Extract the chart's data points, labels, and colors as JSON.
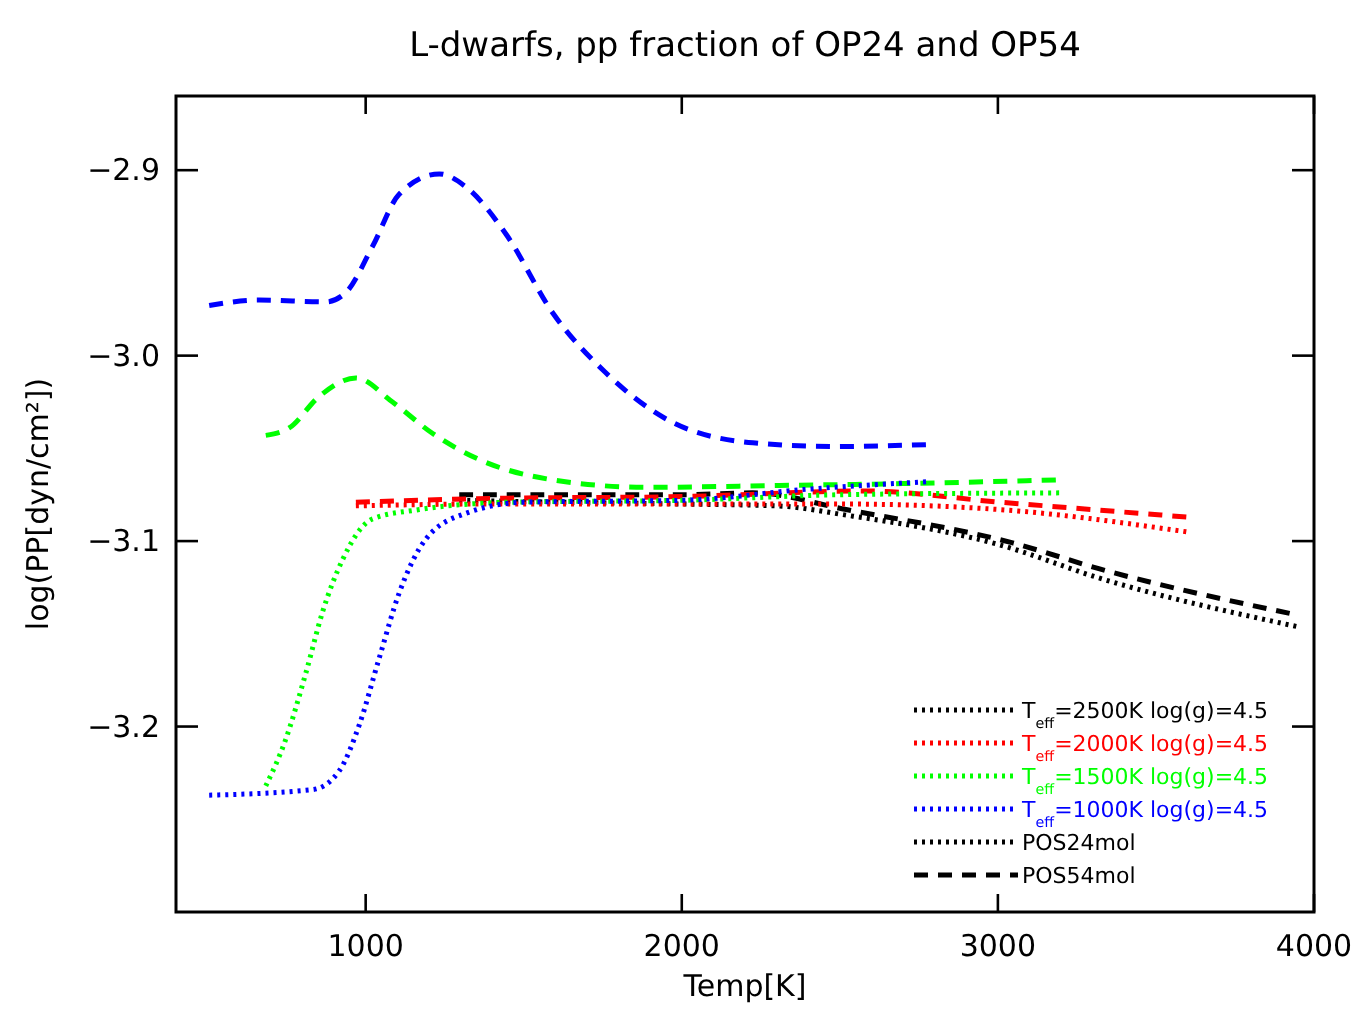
{
  "chart_data": {
    "type": "line",
    "title": "L-dwarfs, pp fraction of OP24 and OP54",
    "xlabel": "Temp[K]",
    "ylabel": "log(PP[dyn/cm²])",
    "xlim": [
      400,
      4000
    ],
    "xticks": [
      1000,
      2000,
      3000,
      4000
    ],
    "ylim": [
      -3.3,
      -2.86
    ],
    "yticks": [
      {
        "value": -2.9,
        "label": "−2.9"
      },
      {
        "value": -3.0,
        "label": "−3.0"
      },
      {
        "value": -3.1,
        "label": "−3.1"
      },
      {
        "value": -3.2,
        "label": "−3.2"
      }
    ],
    "grid": false,
    "legend": "bottom right",
    "annotations": [
      "POS24mol",
      "POS54mol"
    ],
    "series": [
      {
        "name": "T$_{eff}$=2500K  log(g)=4.5",
        "color": "#000000",
        "line_style": "dotted",
        "x": [
          1296,
          1600,
          2000,
          2300,
          2520,
          3005,
          3322,
          3944
        ],
        "values": [
          -3.078,
          -3.079,
          -3.08,
          -3.081,
          -3.086,
          -3.102,
          -3.12,
          -3.146
        ]
      },
      {
        "color": "#000000",
        "line_style": "dashed",
        "x": [
          1296,
          1600,
          2000,
          2225,
          2520,
          3047,
          3322,
          3923
        ],
        "values": [
          -3.075,
          -3.075,
          -3.075,
          -3.074,
          -3.083,
          -3.101,
          -3.115,
          -3.139
        ]
      },
      {
        "name": "T$_{eff}$=2000K  log(g)=4.5",
        "color": "#ff0000",
        "line_style": "dotted",
        "x": [
          969,
          1400,
          2000,
          2500,
          3005,
          3596
        ],
        "values": [
          -3.081,
          -3.08,
          -3.08,
          -3.08,
          -3.083,
          -3.095
        ]
      },
      {
        "color": "#ff0000",
        "line_style": "dashed",
        "x": [
          969,
          1400,
          2000,
          2582,
          3005,
          3596
        ],
        "values": [
          -3.079,
          -3.077,
          -3.076,
          -3.073,
          -3.079,
          -3.087
        ]
      },
      {
        "name": "T$_{eff}$=1500K  log(g)=4.5",
        "color": "#00ff00",
        "line_style": "dotted",
        "x": [
          684,
          747,
          811,
          864,
          927,
          1022,
          1170,
          1465,
          2000,
          2500,
          3194
        ],
        "values": [
          -3.232,
          -3.207,
          -3.171,
          -3.138,
          -3.11,
          -3.088,
          -3.083,
          -3.079,
          -3.078,
          -3.075,
          -3.074
        ]
      },
      {
        "color": "#00ff00",
        "line_style": "dashed",
        "x": [
          684,
          758,
          853,
          969,
          1085,
          1212,
          1359,
          1592,
          1887,
          2309,
          2700,
          3184
        ],
        "values": [
          -3.043,
          -3.039,
          -3.022,
          -3.012,
          -3.025,
          -3.042,
          -3.056,
          -3.067,
          -3.071,
          -3.07,
          -3.069,
          -3.067
        ]
      },
      {
        "name": "T$_{eff}$=1000K  log(g)=4.5",
        "color": "#0000ff",
        "line_style": "dotted",
        "x": [
          505,
          832,
          916,
          980,
          1043,
          1106,
          1190,
          1317,
          1507,
          2000,
          2400,
          2773
        ],
        "values": [
          -3.237,
          -3.234,
          -3.224,
          -3.199,
          -3.163,
          -3.128,
          -3.099,
          -3.085,
          -3.079,
          -3.078,
          -3.072,
          -3.068
        ]
      },
      {
        "color": "#0000ff",
        "line_style": "dashed",
        "x": [
          505,
          663,
          874,
          937,
          1022,
          1106,
          1233,
          1317,
          1442,
          1592,
          1758,
          1971,
          2225,
          2478,
          2773
        ],
        "values": [
          -2.973,
          -2.97,
          -2.971,
          -2.966,
          -2.941,
          -2.913,
          -2.902,
          -2.909,
          -2.934,
          -2.977,
          -3.009,
          -3.036,
          -3.047,
          -3.049,
          -3.048
        ]
      }
    ]
  }
}
